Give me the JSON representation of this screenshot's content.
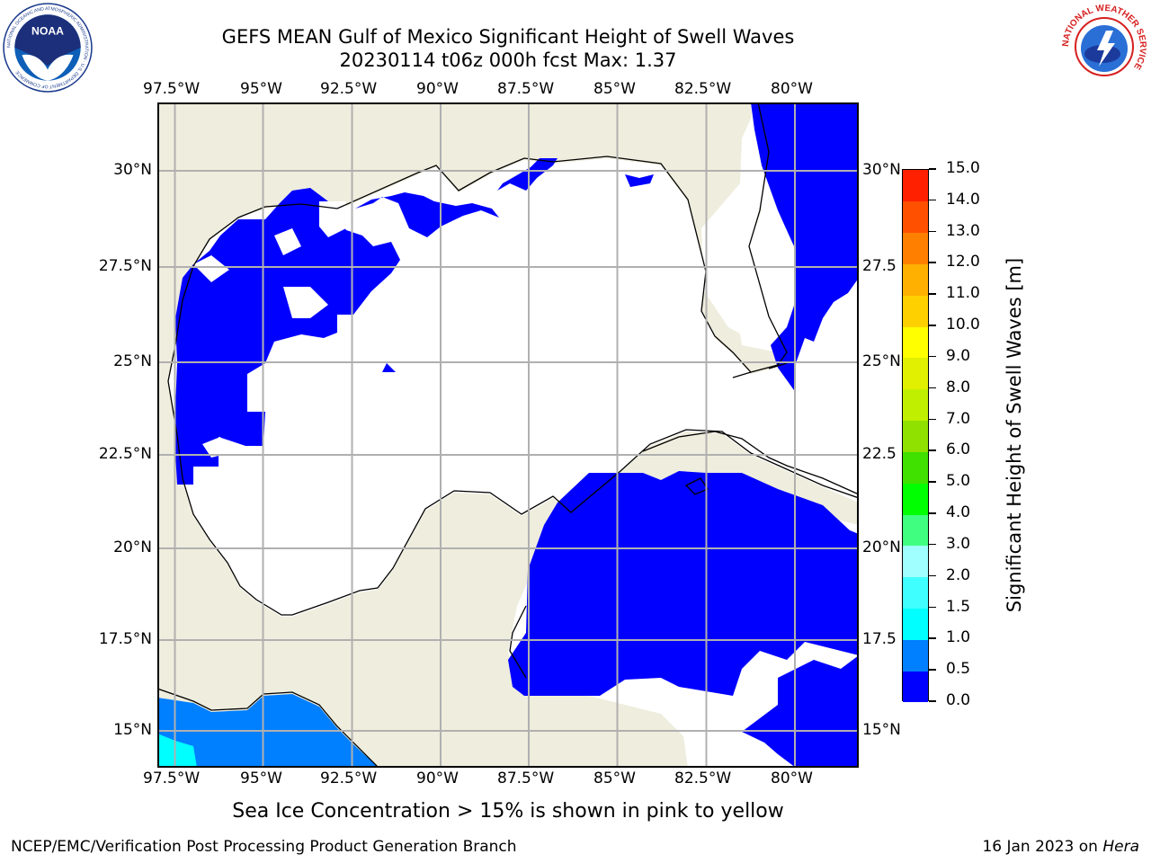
{
  "header": {
    "title_line1": "GEFS MEAN Gulf of Mexico Significant Height of Swell Waves",
    "title_line2": "20230114 t06z 000h fcst   Max: 1.37"
  },
  "logos": {
    "noaa_text": "NOAA",
    "noaa_ring_text": "NATIONAL OCEANIC AND ATMOSPHERIC ADMINISTRATION · U.S. DEPARTMENT OF COMMERCE",
    "nws_ring_text": "NATIONAL WEATHER SERVICE"
  },
  "map": {
    "lon_labels": [
      "97.5°W",
      "95°W",
      "92.5°W",
      "90°W",
      "87.5°W",
      "85°W",
      "82.5°W",
      "80°W"
    ],
    "lat_labels": [
      "30°N",
      "27.5°N",
      "25°N",
      "22.5°N",
      "20°N",
      "17.5°N",
      "15°N"
    ],
    "lat_labels_right": [
      "30°N",
      "27.5",
      "25°N",
      "22.5",
      "20°N",
      "17.5",
      "15°N"
    ],
    "colors": {
      "land": "#efeddd",
      "ocean": "#ffffff",
      "swell_0_to_0_5": "#0000ff",
      "swell_0_5_to_1": "#007fff",
      "swell_1_to_1_5": "#00ffff",
      "grid": "#b0b0b0"
    }
  },
  "colorbar": {
    "title": "Significant Height of Swell Waves [m]",
    "tick_labels": [
      "0.0",
      "0.5",
      "1.0",
      "1.5",
      "2.0",
      "3.0",
      "4.0",
      "5.0",
      "6.0",
      "7.0",
      "8.0",
      "9.0",
      "10.0",
      "11.0",
      "12.0",
      "13.0",
      "14.0",
      "15.0"
    ],
    "colors": [
      "#0000ff",
      "#007fff",
      "#00ffff",
      "#40ffff",
      "#a0ffff",
      "#40ff80",
      "#00ff00",
      "#40e000",
      "#90e000",
      "#c0f000",
      "#e0f000",
      "#ffff00",
      "#ffd000",
      "#ffb000",
      "#ff8000",
      "#ff5000",
      "#ff2000"
    ]
  },
  "footer": {
    "note": "Sea Ice Concentration > 15% is shown in pink to yellow",
    "left": "NCEP/EMC/Verification Post Processing Product Generation Branch",
    "right_date": "16 Jan 2023 on ",
    "right_host": "Hera"
  }
}
